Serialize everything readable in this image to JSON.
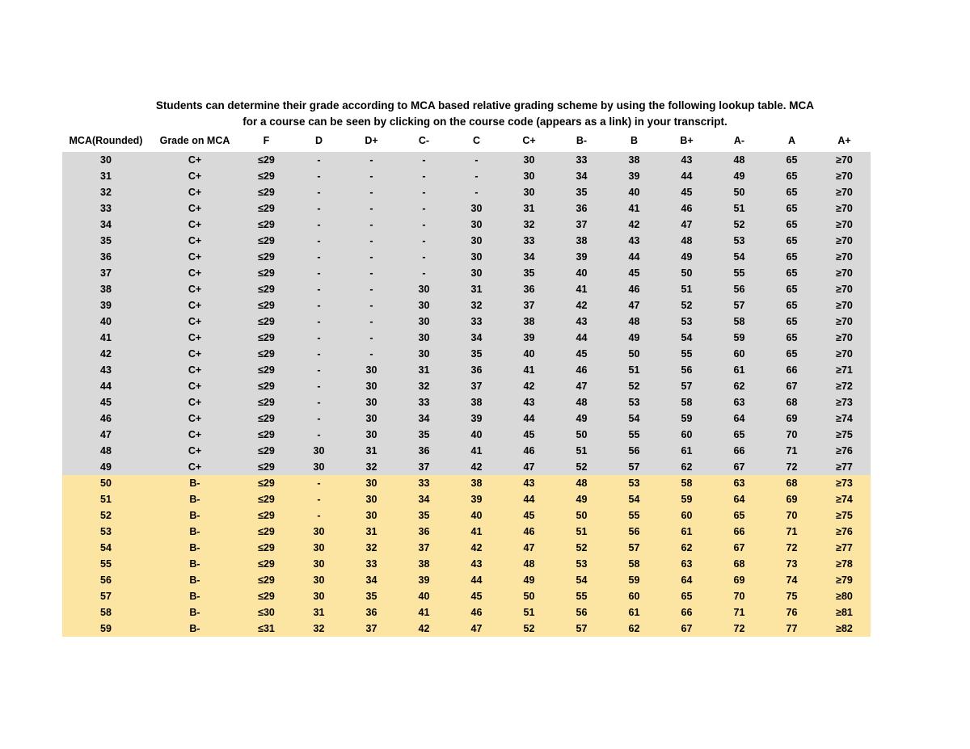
{
  "title": {
    "line1": "Students can determine their grade according to MCA based relative grading scheme by using the following lookup table. MCA",
    "line2": "for a course can be seen by clicking on the course code (appears as a link) in your transcript."
  },
  "colors": {
    "band_gray": "#d9d9d9",
    "band_yellow": "#fce4a2",
    "text": "#000000",
    "background": "#ffffff"
  },
  "table": {
    "columns": [
      "MCA(Rounded)",
      "Grade on MCA",
      "F",
      "D",
      "D+",
      "C-",
      "C",
      "C+",
      "B-",
      "B",
      "B+",
      "A-",
      "A",
      "A+"
    ],
    "rows": [
      {
        "mca": "30",
        "grade": "C+",
        "band": "gray",
        "values": [
          "≤29",
          "-",
          "-",
          "-",
          "-",
          "30",
          "33",
          "38",
          "43",
          "48",
          "65",
          "≥70"
        ]
      },
      {
        "mca": "31",
        "grade": "C+",
        "band": "gray",
        "values": [
          "≤29",
          "-",
          "-",
          "-",
          "-",
          "30",
          "34",
          "39",
          "44",
          "49",
          "65",
          "≥70"
        ]
      },
      {
        "mca": "32",
        "grade": "C+",
        "band": "gray",
        "values": [
          "≤29",
          "-",
          "-",
          "-",
          "-",
          "30",
          "35",
          "40",
          "45",
          "50",
          "65",
          "≥70"
        ]
      },
      {
        "mca": "33",
        "grade": "C+",
        "band": "gray",
        "values": [
          "≤29",
          "-",
          "-",
          "-",
          "30",
          "31",
          "36",
          "41",
          "46",
          "51",
          "65",
          "≥70"
        ]
      },
      {
        "mca": "34",
        "grade": "C+",
        "band": "gray",
        "values": [
          "≤29",
          "-",
          "-",
          "-",
          "30",
          "32",
          "37",
          "42",
          "47",
          "52",
          "65",
          "≥70"
        ]
      },
      {
        "mca": "35",
        "grade": "C+",
        "band": "gray",
        "values": [
          "≤29",
          "-",
          "-",
          "-",
          "30",
          "33",
          "38",
          "43",
          "48",
          "53",
          "65",
          "≥70"
        ]
      },
      {
        "mca": "36",
        "grade": "C+",
        "band": "gray",
        "values": [
          "≤29",
          "-",
          "-",
          "-",
          "30",
          "34",
          "39",
          "44",
          "49",
          "54",
          "65",
          "≥70"
        ]
      },
      {
        "mca": "37",
        "grade": "C+",
        "band": "gray",
        "values": [
          "≤29",
          "-",
          "-",
          "-",
          "30",
          "35",
          "40",
          "45",
          "50",
          "55",
          "65",
          "≥70"
        ]
      },
      {
        "mca": "38",
        "grade": "C+",
        "band": "gray",
        "values": [
          "≤29",
          "-",
          "-",
          "30",
          "31",
          "36",
          "41",
          "46",
          "51",
          "56",
          "65",
          "≥70"
        ]
      },
      {
        "mca": "39",
        "grade": "C+",
        "band": "gray",
        "values": [
          "≤29",
          "-",
          "-",
          "30",
          "32",
          "37",
          "42",
          "47",
          "52",
          "57",
          "65",
          "≥70"
        ]
      },
      {
        "mca": "40",
        "grade": "C+",
        "band": "gray",
        "values": [
          "≤29",
          "-",
          "-",
          "30",
          "33",
          "38",
          "43",
          "48",
          "53",
          "58",
          "65",
          "≥70"
        ]
      },
      {
        "mca": "41",
        "grade": "C+",
        "band": "gray",
        "values": [
          "≤29",
          "-",
          "-",
          "30",
          "34",
          "39",
          "44",
          "49",
          "54",
          "59",
          "65",
          "≥70"
        ]
      },
      {
        "mca": "42",
        "grade": "C+",
        "band": "gray",
        "values": [
          "≤29",
          "-",
          "-",
          "30",
          "35",
          "40",
          "45",
          "50",
          "55",
          "60",
          "65",
          "≥70"
        ]
      },
      {
        "mca": "43",
        "grade": "C+",
        "band": "gray",
        "values": [
          "≤29",
          "-",
          "30",
          "31",
          "36",
          "41",
          "46",
          "51",
          "56",
          "61",
          "66",
          "≥71"
        ]
      },
      {
        "mca": "44",
        "grade": "C+",
        "band": "gray",
        "values": [
          "≤29",
          "-",
          "30",
          "32",
          "37",
          "42",
          "47",
          "52",
          "57",
          "62",
          "67",
          "≥72"
        ]
      },
      {
        "mca": "45",
        "grade": "C+",
        "band": "gray",
        "values": [
          "≤29",
          "-",
          "30",
          "33",
          "38",
          "43",
          "48",
          "53",
          "58",
          "63",
          "68",
          "≥73"
        ]
      },
      {
        "mca": "46",
        "grade": "C+",
        "band": "gray",
        "values": [
          "≤29",
          "-",
          "30",
          "34",
          "39",
          "44",
          "49",
          "54",
          "59",
          "64",
          "69",
          "≥74"
        ]
      },
      {
        "mca": "47",
        "grade": "C+",
        "band": "gray",
        "values": [
          "≤29",
          "-",
          "30",
          "35",
          "40",
          "45",
          "50",
          "55",
          "60",
          "65",
          "70",
          "≥75"
        ]
      },
      {
        "mca": "48",
        "grade": "C+",
        "band": "gray",
        "values": [
          "≤29",
          "30",
          "31",
          "36",
          "41",
          "46",
          "51",
          "56",
          "61",
          "66",
          "71",
          "≥76"
        ]
      },
      {
        "mca": "49",
        "grade": "C+",
        "band": "gray",
        "values": [
          "≤29",
          "30",
          "32",
          "37",
          "42",
          "47",
          "52",
          "57",
          "62",
          "67",
          "72",
          "≥77"
        ]
      },
      {
        "mca": "50",
        "grade": "B-",
        "band": "yellow",
        "values": [
          "≤29",
          "-",
          "30",
          "33",
          "38",
          "43",
          "48",
          "53",
          "58",
          "63",
          "68",
          "≥73"
        ]
      },
      {
        "mca": "51",
        "grade": "B-",
        "band": "yellow",
        "values": [
          "≤29",
          "-",
          "30",
          "34",
          "39",
          "44",
          "49",
          "54",
          "59",
          "64",
          "69",
          "≥74"
        ]
      },
      {
        "mca": "52",
        "grade": "B-",
        "band": "yellow",
        "values": [
          "≤29",
          "-",
          "30",
          "35",
          "40",
          "45",
          "50",
          "55",
          "60",
          "65",
          "70",
          "≥75"
        ]
      },
      {
        "mca": "53",
        "grade": "B-",
        "band": "yellow",
        "values": [
          "≤29",
          "30",
          "31",
          "36",
          "41",
          "46",
          "51",
          "56",
          "61",
          "66",
          "71",
          "≥76"
        ]
      },
      {
        "mca": "54",
        "grade": "B-",
        "band": "yellow",
        "values": [
          "≤29",
          "30",
          "32",
          "37",
          "42",
          "47",
          "52",
          "57",
          "62",
          "67",
          "72",
          "≥77"
        ]
      },
      {
        "mca": "55",
        "grade": "B-",
        "band": "yellow",
        "values": [
          "≤29",
          "30",
          "33",
          "38",
          "43",
          "48",
          "53",
          "58",
          "63",
          "68",
          "73",
          "≥78"
        ]
      },
      {
        "mca": "56",
        "grade": "B-",
        "band": "yellow",
        "values": [
          "≤29",
          "30",
          "34",
          "39",
          "44",
          "49",
          "54",
          "59",
          "64",
          "69",
          "74",
          "≥79"
        ]
      },
      {
        "mca": "57",
        "grade": "B-",
        "band": "yellow",
        "values": [
          "≤29",
          "30",
          "35",
          "40",
          "45",
          "50",
          "55",
          "60",
          "65",
          "70",
          "75",
          "≥80"
        ]
      },
      {
        "mca": "58",
        "grade": "B-",
        "band": "yellow",
        "values": [
          "≤30",
          "31",
          "36",
          "41",
          "46",
          "51",
          "56",
          "61",
          "66",
          "71",
          "76",
          "≥81"
        ]
      },
      {
        "mca": "59",
        "grade": "B-",
        "band": "yellow",
        "values": [
          "≤31",
          "32",
          "37",
          "42",
          "47",
          "52",
          "57",
          "62",
          "67",
          "72",
          "77",
          "≥82"
        ]
      }
    ]
  }
}
